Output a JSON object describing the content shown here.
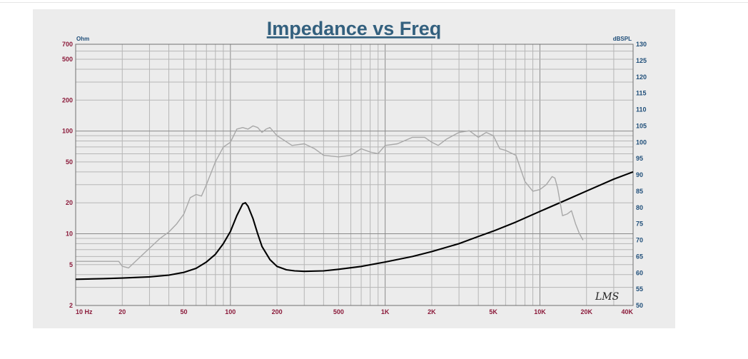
{
  "chart_data": {
    "type": "line",
    "title": "Impedance vs Freq",
    "x_axis": {
      "scale": "log",
      "range": [
        10,
        40000
      ],
      "tick_labels": [
        {
          "value": 10,
          "label": "10 Hz"
        },
        {
          "value": 20,
          "label": "20"
        },
        {
          "value": 50,
          "label": "50"
        },
        {
          "value": 100,
          "label": "100"
        },
        {
          "value": 200,
          "label": "200"
        },
        {
          "value": 500,
          "label": "500"
        },
        {
          "value": 1000,
          "label": "1K"
        },
        {
          "value": 2000,
          "label": "2K"
        },
        {
          "value": 5000,
          "label": "5K"
        },
        {
          "value": 10000,
          "label": "10K"
        },
        {
          "value": 20000,
          "label": "20K"
        },
        {
          "value": 40000,
          "label": "40K"
        }
      ]
    },
    "y_left": {
      "unit": "Ohm",
      "scale": "log",
      "range": [
        2,
        700
      ],
      "tick_labels": [
        {
          "value": 2,
          "label": "2"
        },
        {
          "value": 5,
          "label": "5"
        },
        {
          "value": 10,
          "label": "10"
        },
        {
          "value": 20,
          "label": "20"
        },
        {
          "value": 50,
          "label": "50"
        },
        {
          "value": 100,
          "label": "100"
        },
        {
          "value": 200,
          "label": "200"
        },
        {
          "value": 500,
          "label": "500"
        },
        {
          "value": 700,
          "label": "700"
        }
      ]
    },
    "y_right": {
      "unit": "dBSPL",
      "scale": "linear",
      "range": [
        50,
        130
      ],
      "tick_labels": [
        "50",
        "55",
        "60",
        "65",
        "70",
        "75",
        "80",
        "85",
        "90",
        "95",
        "100",
        "105",
        "110",
        "115",
        "120",
        "125",
        "130"
      ]
    },
    "grid": true,
    "logo": "LMS",
    "series": [
      {
        "color": "#000000",
        "axis": "left",
        "points": [
          [
            10,
            3.6
          ],
          [
            15,
            3.65
          ],
          [
            20,
            3.7
          ],
          [
            30,
            3.8
          ],
          [
            40,
            3.95
          ],
          [
            50,
            4.2
          ],
          [
            60,
            4.6
          ],
          [
            70,
            5.3
          ],
          [
            80,
            6.3
          ],
          [
            90,
            8.0
          ],
          [
            100,
            10.5
          ],
          [
            110,
            15.0
          ],
          [
            120,
            19.5
          ],
          [
            125,
            20.0
          ],
          [
            130,
            18.5
          ],
          [
            140,
            14.0
          ],
          [
            150,
            10.0
          ],
          [
            160,
            7.5
          ],
          [
            180,
            5.6
          ],
          [
            200,
            4.8
          ],
          [
            230,
            4.45
          ],
          [
            260,
            4.35
          ],
          [
            300,
            4.3
          ],
          [
            400,
            4.35
          ],
          [
            500,
            4.5
          ],
          [
            700,
            4.8
          ],
          [
            1000,
            5.3
          ],
          [
            1500,
            6.0
          ],
          [
            2000,
            6.7
          ],
          [
            3000,
            8.0
          ],
          [
            4000,
            9.4
          ],
          [
            5000,
            10.6
          ],
          [
            7000,
            13.0
          ],
          [
            10000,
            16.5
          ],
          [
            15000,
            21.5
          ],
          [
            20000,
            26.0
          ],
          [
            30000,
            34.0
          ],
          [
            40000,
            40.0
          ]
        ]
      },
      {
        "color": "#a8a8a8",
        "axis": "right",
        "points": [
          [
            10,
            63.5
          ],
          [
            19,
            63.5
          ],
          [
            20,
            62.0
          ],
          [
            22,
            61.5
          ],
          [
            25,
            64.0
          ],
          [
            30,
            67.5
          ],
          [
            35,
            70.5
          ],
          [
            40,
            72.5
          ],
          [
            45,
            75.0
          ],
          [
            50,
            78.0
          ],
          [
            55,
            83.0
          ],
          [
            60,
            84.0
          ],
          [
            65,
            83.5
          ],
          [
            70,
            87.0
          ],
          [
            80,
            94.0
          ],
          [
            90,
            98.5
          ],
          [
            100,
            100.0
          ],
          [
            110,
            104.0
          ],
          [
            120,
            104.5
          ],
          [
            130,
            104.0
          ],
          [
            140,
            105.0
          ],
          [
            150,
            104.5
          ],
          [
            160,
            103.0
          ],
          [
            170,
            104.0
          ],
          [
            180,
            104.5
          ],
          [
            200,
            102.0
          ],
          [
            250,
            99.0
          ],
          [
            300,
            99.5
          ],
          [
            350,
            98.0
          ],
          [
            400,
            96.0
          ],
          [
            500,
            95.5
          ],
          [
            600,
            96.0
          ],
          [
            700,
            98.0
          ],
          [
            800,
            97.0
          ],
          [
            900,
            96.5
          ],
          [
            1000,
            99.0
          ],
          [
            1200,
            99.5
          ],
          [
            1500,
            101.5
          ],
          [
            1800,
            101.5
          ],
          [
            2000,
            100.0
          ],
          [
            2200,
            99.0
          ],
          [
            2500,
            101.0
          ],
          [
            3000,
            103.0
          ],
          [
            3500,
            103.5
          ],
          [
            4000,
            101.5
          ],
          [
            4500,
            103.0
          ],
          [
            5000,
            102.0
          ],
          [
            5500,
            98.0
          ],
          [
            6000,
            97.5
          ],
          [
            7000,
            96.0
          ],
          [
            8000,
            88.0
          ],
          [
            9000,
            85.0
          ],
          [
            10000,
            85.5
          ],
          [
            11000,
            87.0
          ],
          [
            12000,
            89.5
          ],
          [
            12500,
            89.0
          ],
          [
            13000,
            86.0
          ],
          [
            14000,
            77.5
          ],
          [
            15000,
            78.0
          ],
          [
            16000,
            79.0
          ],
          [
            17000,
            75.0
          ],
          [
            18000,
            72.0
          ],
          [
            19000,
            70.0
          ]
        ]
      }
    ]
  }
}
